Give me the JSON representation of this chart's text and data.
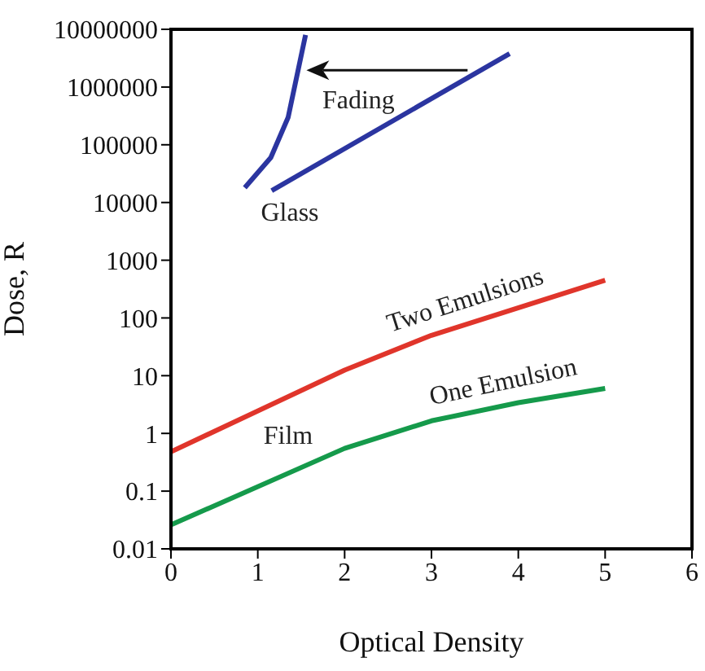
{
  "chart_data": {
    "type": "line",
    "xlabel": "Optical Density",
    "ylabel": "Dose, R",
    "log": "y",
    "xlim": [
      0,
      6
    ],
    "xticks": [
      0,
      1,
      2,
      3,
      4,
      5,
      6
    ],
    "ylim": [
      0.01,
      10000000
    ],
    "yticks": [
      0.01,
      0.1,
      1,
      10,
      100,
      1000,
      10000,
      100000,
      1000000,
      10000000
    ],
    "grid": false,
    "legend": false,
    "marker": "none",
    "line_style": "solid",
    "series": [
      {
        "color": "#2b35a0",
        "x": [
          0.85,
          1.15,
          1.35,
          1.55
        ],
        "values": [
          18000,
          60000,
          300000,
          8000000
        ]
      },
      {
        "name": "Glass",
        "color": "#2b35a0",
        "x": [
          1.16,
          3.9
        ],
        "values": [
          16000,
          3800000
        ]
      },
      {
        "name": "Two Emulsions",
        "color": "#e0352b",
        "x": [
          0,
          2,
          3,
          5
        ],
        "values": [
          0.48,
          12.5,
          50,
          450
        ]
      },
      {
        "name": "One Emulsion",
        "color": "#159a4b",
        "x": [
          0,
          2,
          3,
          4,
          5
        ],
        "values": [
          0.026,
          0.55,
          1.65,
          3.4,
          6
        ]
      }
    ],
    "annotations": [
      {
        "text": "Fading",
        "x": 1.56,
        "y": 1950000
      },
      "Film"
    ]
  }
}
